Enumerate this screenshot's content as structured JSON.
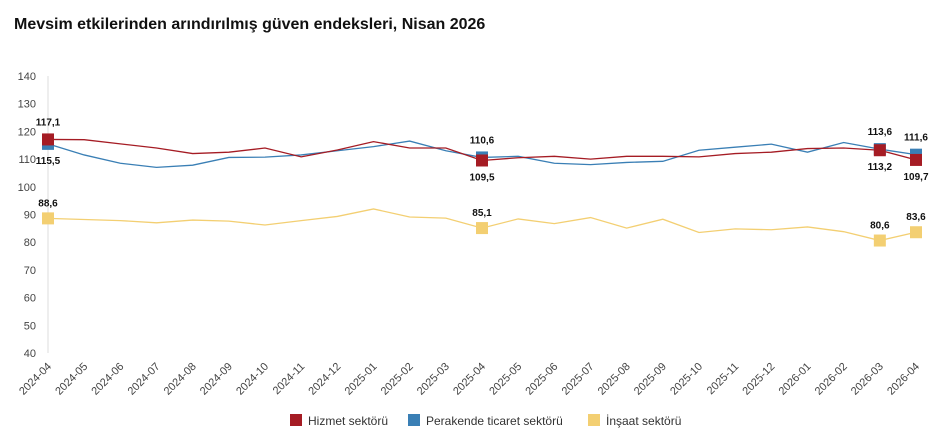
{
  "chart_data": {
    "type": "line",
    "title": "Mevsim etkilerinden arındırılmış güven endeksleri, Nisan 2026",
    "xlabel": "",
    "ylabel": "",
    "ylim": [
      40,
      140
    ],
    "yticks": [
      40,
      50,
      60,
      70,
      80,
      90,
      100,
      110,
      120,
      130,
      140
    ],
    "grid": false,
    "legend": "bottom",
    "categories": [
      "2024-04",
      "2024-05",
      "2024-06",
      "2024-07",
      "2024-08",
      "2024-09",
      "2024-10",
      "2024-11",
      "2024-12",
      "2025-01",
      "2025-02",
      "2025-03",
      "2025-04",
      "2025-05",
      "2025-06",
      "2025-07",
      "2025-08",
      "2025-09",
      "2025-10",
      "2025-11",
      "2025-12",
      "2026-01",
      "2026-02",
      "2026-03",
      "2026-04"
    ],
    "labeled_points": [
      "2024-04",
      "2025-04",
      "2026-03",
      "2026-04"
    ],
    "series": [
      {
        "name": "Hizmet sektörü",
        "color": "#a51c24",
        "label_pos": "above-first-then-below",
        "values": [
          117.1,
          117.0,
          115.5,
          114.0,
          112.0,
          112.5,
          114.0,
          110.8,
          113.3,
          116.3,
          114.0,
          114.0,
          109.5,
          110.5,
          111.0,
          110.0,
          111.0,
          111.0,
          110.8,
          112.0,
          112.5,
          113.8,
          114.0,
          113.2,
          109.7
        ],
        "labels": [
          "117,1",
          "109,5",
          "113,2",
          "109,7"
        ]
      },
      {
        "name": "Perakende ticaret sektörü",
        "color": "#3a7fb5",
        "values": [
          115.5,
          111.5,
          108.5,
          107.0,
          107.8,
          110.6,
          110.7,
          111.5,
          113.0,
          114.5,
          116.5,
          113.0,
          110.6,
          111.0,
          108.5,
          108.0,
          108.8,
          109.2,
          113.2,
          114.3,
          115.4,
          112.5,
          116.0,
          113.6,
          111.6
        ],
        "labels": [
          "115,5",
          "110,6",
          "113,6",
          "111,6"
        ]
      },
      {
        "name": "İnşaat sektörü",
        "color": "#f3cf72",
        "values": [
          88.6,
          88.2,
          87.8,
          87.0,
          88.0,
          87.6,
          86.2,
          87.8,
          89.3,
          92.0,
          89.1,
          88.7,
          85.1,
          88.4,
          86.7,
          88.9,
          85.1,
          88.3,
          83.5,
          84.8,
          84.5,
          85.5,
          83.8,
          80.6,
          83.6
        ],
        "labels": [
          "88,6",
          "85,1",
          "80,6",
          "83,6"
        ]
      }
    ]
  }
}
